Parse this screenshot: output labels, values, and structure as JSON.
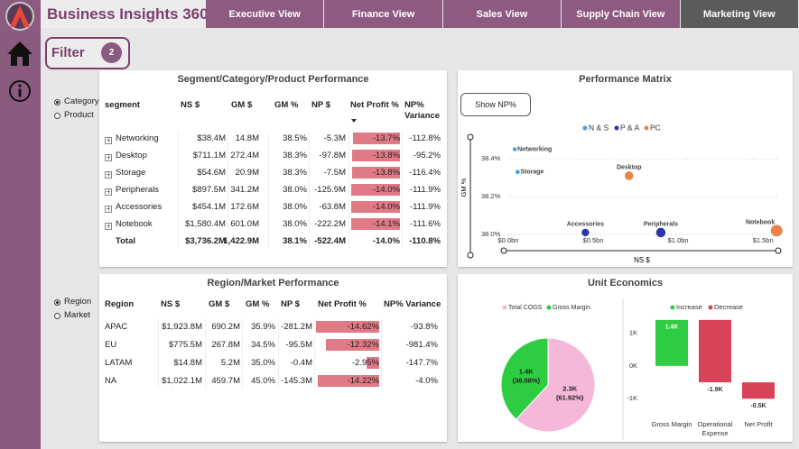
{
  "header": {
    "title": "Business Insights 360",
    "tabs": [
      "Executive View",
      "Finance View",
      "Sales View",
      "Supply Chain View",
      "Marketing View"
    ],
    "active_tab": 4
  },
  "filter": {
    "label": "Filter",
    "count": 2
  },
  "performance_matrix": {
    "button": "Show NP%"
  },
  "segment_panel": {
    "title": "Segment/Category/Product Performance",
    "toggle": {
      "options": [
        "Category",
        "Product"
      ],
      "selected": 0
    },
    "columns": [
      "segment",
      "NS $",
      "GM $",
      "GM %",
      "NP $",
      "Net Profit %",
      "NP% Variance"
    ],
    "rows": [
      [
        "Networking",
        "$38.4M",
        "14.8M",
        "38.5%",
        "-5.3M",
        {
          "value": -13.7,
          "label": "-13.7%"
        },
        "-112.8%"
      ],
      [
        "Desktop",
        "$711.1M",
        "272.4M",
        "38.3%",
        "-97.8M",
        {
          "value": -13.8,
          "label": "-13.8%"
        },
        "-95.2%"
      ],
      [
        "Storage",
        "$54.6M",
        "20.9M",
        "38.3%",
        "-7.5M",
        {
          "value": -13.8,
          "label": "-13.8%"
        },
        "-116.4%"
      ],
      [
        "Peripherals",
        "$897.5M",
        "341.2M",
        "38.0%",
        "-125.9M",
        {
          "value": -14.0,
          "label": "-14.0%"
        },
        "-111.9%"
      ],
      [
        "Accessories",
        "$454.1M",
        "172.6M",
        "38.0%",
        "-63.8M",
        {
          "value": -14.0,
          "label": "-14.0%"
        },
        "-111.9%"
      ],
      [
        "Notebook",
        "$1,580.4M",
        "601.0M",
        "38.0%",
        "-222.2M",
        {
          "value": -14.1,
          "label": "-14.1%"
        },
        "-111.6%"
      ]
    ],
    "total": [
      "Total",
      "$3,736.2M",
      "1,422.9M",
      "38.1%",
      "-522.4M",
      "-14.0%",
      "-110.8%"
    ]
  },
  "region_panel": {
    "title": "Region/Market Performance",
    "toggle": {
      "options": [
        "Region",
        "Market"
      ],
      "selected": 0
    },
    "columns": [
      "Region",
      "NS $",
      "GM $",
      "GM %",
      "NP $",
      "Net Profit %",
      "NP% Variance"
    ],
    "rows": [
      [
        "APAC",
        "$1,923.8M",
        "690.2M",
        "35.9%",
        "-281.2M",
        {
          "value": -14.62,
          "label": "-14.62%"
        },
        "-93.8%"
      ],
      [
        "EU",
        "$775.5M",
        "267.8M",
        "34.5%",
        "-95.5M",
        {
          "value": -12.32,
          "label": "-12.32%"
        },
        "-981.4%"
      ],
      [
        "LATAM",
        "$14.8M",
        "5.2M",
        "35.0%",
        "-0.4M",
        {
          "value": -2.95,
          "label": "-2.95%"
        },
        "-147.7%"
      ],
      [
        "NA",
        "$1,022.1M",
        "459.7M",
        "45.0%",
        "-145.3M",
        {
          "value": -14.22,
          "label": "-14.22%"
        },
        "-4.0%"
      ]
    ]
  },
  "chart_data": [
    {
      "type": "scatter",
      "title": "Performance Matrix",
      "x_label": "NS $",
      "y_label": "GM %",
      "xlim": [
        0,
        1.6
      ],
      "ylim": [
        37.98,
        38.52
      ],
      "xticks": [
        {
          "value": 0,
          "label": "$0.0bn"
        },
        {
          "value": 0.5,
          "label": "$0.5bn"
        },
        {
          "value": 1.0,
          "label": "$1.0bn"
        },
        {
          "value": 1.5,
          "label": "$1.5bn"
        }
      ],
      "yticks": [
        {
          "value": 38.0,
          "label": "38.0%"
        },
        {
          "value": 38.2,
          "label": "38.2%"
        },
        {
          "value": 38.4,
          "label": "38.4%"
        }
      ],
      "grid": true,
      "series": [
        {
          "name": "N & S",
          "color": "#4aa3df",
          "labels": [
            "Networking",
            "Storage"
          ],
          "x": [
            0.038,
            0.055
          ],
          "y": [
            38.45,
            38.33
          ]
        },
        {
          "name": "P & A",
          "color": "#2a37a8",
          "labels": [
            "Accessories",
            "Peripherals"
          ],
          "x": [
            0.454,
            0.898
          ],
          "y": [
            38.01,
            38.01
          ]
        },
        {
          "name": "PC",
          "color": "#e8834a",
          "labels": [
            "Desktop",
            "Notebook"
          ],
          "x": [
            0.711,
            1.58
          ],
          "y": [
            38.31,
            38.02
          ]
        }
      ]
    },
    {
      "type": "pie",
      "title": "Unit Economics",
      "categories": [
        "Total COGS",
        "Gross Margin"
      ],
      "values": [
        61.92,
        38.08
      ],
      "value_labels": [
        "(61.92%)",
        "(38.08%)"
      ],
      "amount_labels": [
        "2.3K",
        "1.4K"
      ],
      "colors": [
        "#f5b8da",
        "#2ecc40"
      ]
    },
    {
      "type": "waterfall",
      "categories": [
        "Gross Margin",
        "Operational Expense",
        "Net Profit"
      ],
      "values": [
        1.4,
        -1.9,
        -0.5
      ],
      "value_labels": [
        "1.4K",
        "-1.9K",
        "-0.5K"
      ],
      "legend": [
        {
          "name": "Increase",
          "color": "#2ecc40"
        },
        {
          "name": "Decrease",
          "color": "#d9435a"
        }
      ],
      "ylim": [
        -1.35,
        1.55
      ],
      "yticks": [
        {
          "value": -1,
          "label": "-1K"
        },
        {
          "value": 0,
          "label": "0K"
        },
        {
          "value": 1,
          "label": "1K"
        }
      ]
    }
  ]
}
